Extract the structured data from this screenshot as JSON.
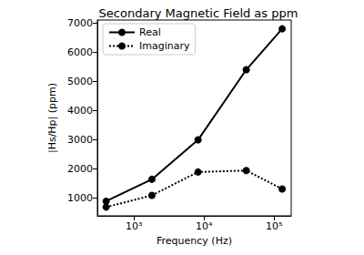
{
  "chart_data": {
    "type": "line",
    "title": "Secondary Magnetic Field as ppm",
    "x_label": "Frequency (Hz)",
    "y_label": "|Hs/Hp| (ppm)",
    "x": [
      400,
      1800,
      8200,
      40000,
      130000
    ],
    "series": [
      {
        "name": "Real",
        "color": "#000000",
        "marker": "circle",
        "line_style": "solid",
        "values": [
          900,
          1650,
          3000,
          5400,
          6800
        ]
      },
      {
        "name": "Imaginary",
        "color": "#000000",
        "marker": "circle",
        "line_style": "dotted",
        "values": [
          700,
          1100,
          1900,
          1950,
          1320
        ]
      }
    ],
    "log": "x",
    "xlim": [
      300,
      175000
    ],
    "xticks": [
      {
        "value": 1000,
        "label": "10³"
      },
      {
        "value": 10000,
        "label": "10⁴"
      },
      {
        "value": 100000,
        "label": "10⁵"
      }
    ],
    "ylim": [
      400,
      7100
    ],
    "yticks": [
      1000,
      2000,
      3000,
      4000,
      5000,
      6000,
      7000
    ],
    "grid": false,
    "legend": "upper left"
  }
}
